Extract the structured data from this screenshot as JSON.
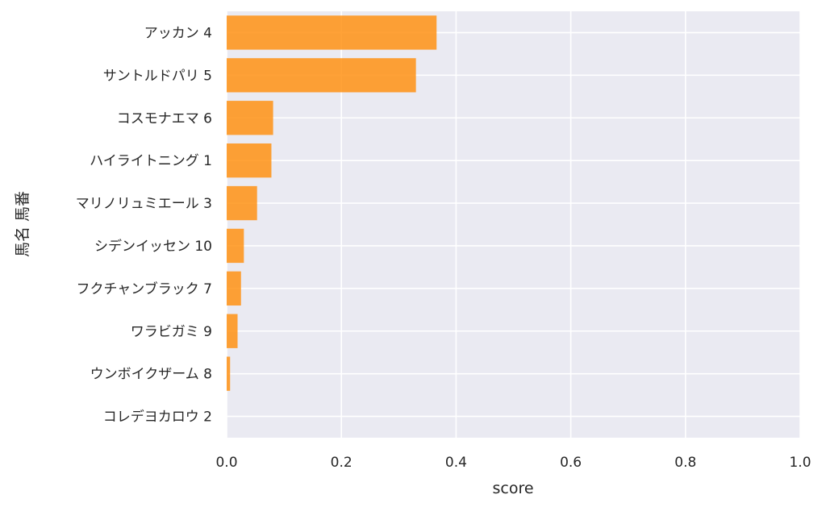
{
  "chart_data": {
    "type": "bar",
    "orientation": "horizontal",
    "categories": [
      "アッカン 4",
      "サントルドパリ 5",
      "コスモナエマ 6",
      "ハイライトニング 1",
      "マリノリュミエール 3",
      "シデンイッセン 10",
      "フクチャンブラック 7",
      "ワラビガミ 9",
      "ウンボイクザーム 8",
      "コレデヨカロウ 2"
    ],
    "values": [
      0.366,
      0.33,
      0.081,
      0.078,
      0.053,
      0.03,
      0.025,
      0.019,
      0.006,
      0.0
    ],
    "xlabel": "score",
    "ylabel": "馬名 馬番",
    "xlim": [
      0,
      1.0
    ],
    "xticks": [
      "0.0",
      "0.2",
      "0.4",
      "0.6",
      "0.8",
      "1.0"
    ],
    "grid": true,
    "bar_color": "#ff9214",
    "background_color": "#eaeaf2"
  }
}
